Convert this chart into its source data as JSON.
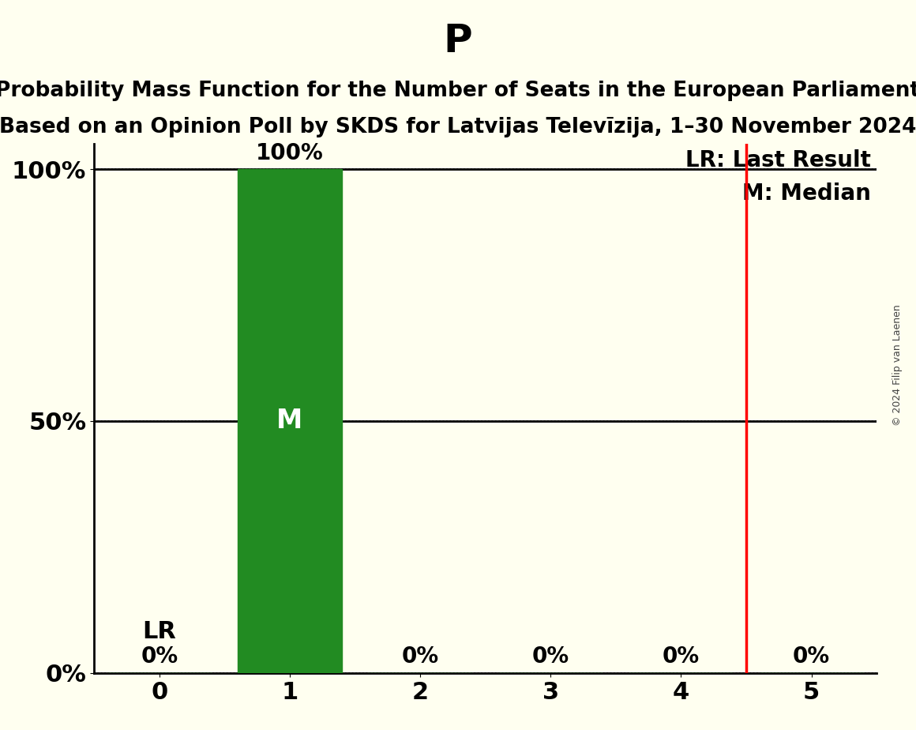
{
  "title": "P",
  "subtitle_line1": "Probability Mass Function for the Number of Seats in the European Parliament",
  "subtitle_line2": "Based on an Opinion Poll by SKDS for Latvijas Televīzija, 1–30 November 2024",
  "copyright": "© 2024 Filip van Laenen",
  "seats": [
    0,
    1,
    2,
    3,
    4,
    5
  ],
  "probabilities": [
    0.0,
    1.0,
    0.0,
    0.0,
    0.0,
    0.0
  ],
  "bar_color": "#228B22",
  "last_result": 4.5,
  "median": 1,
  "background_color": "#FFFFF0",
  "bar_label_color": "#000000",
  "median_label_color": "#FFFFFF",
  "lr_line_color": "#FF0000",
  "grid_color": "#000000",
  "title_fontsize": 36,
  "subtitle_fontsize": 19,
  "axis_label_fontsize": 22,
  "tick_label_fontsize": 22,
  "annotation_fontsize": 20,
  "bar_width": 0.8,
  "ylim": [
    0,
    1.05
  ],
  "yticks": [
    0.0,
    0.5,
    1.0
  ],
  "ytick_labels": [
    "0%",
    "50%",
    "100%"
  ],
  "xlim": [
    -0.5,
    5.5
  ]
}
